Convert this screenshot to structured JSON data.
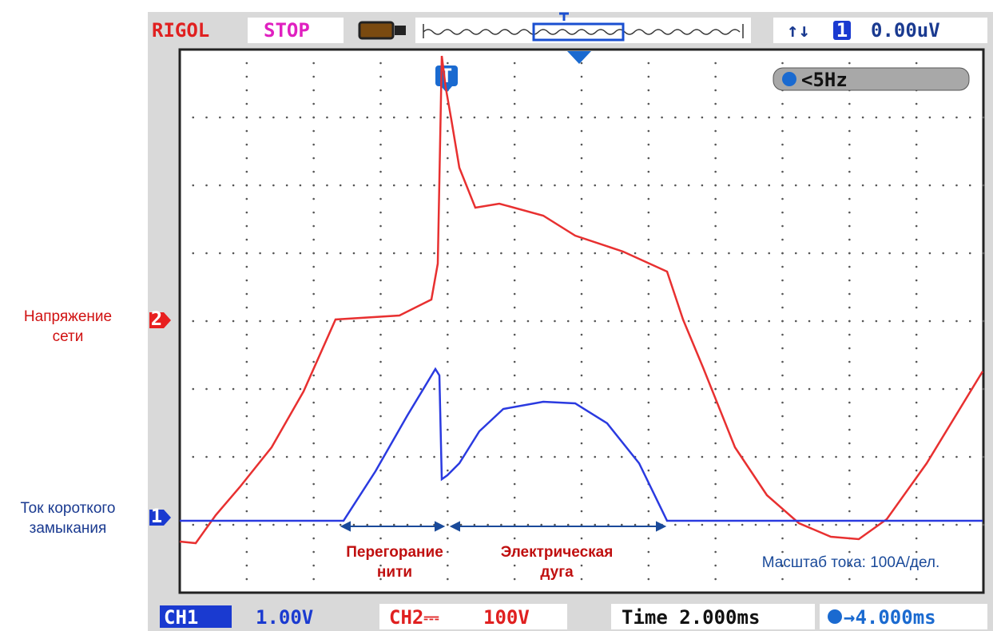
{
  "header": {
    "brand": "RIGOL",
    "status": "STOP",
    "trigger_edge": "↑↓",
    "trigger_channel": "1",
    "trigger_level": "0.00uV"
  },
  "screen": {
    "trigger_marker": "T",
    "frequency": "<5Hz",
    "ch2_marker": "2",
    "ch1_marker": "1"
  },
  "labels": {
    "voltage": [
      "Напряжение",
      "сети"
    ],
    "current": [
      "Ток короткого",
      "замыкания"
    ]
  },
  "annotations": {
    "filament": [
      "Перегорание",
      "нити"
    ],
    "arc": [
      "Электрическая",
      "дуга"
    ],
    "scale": "Масштаб тока: 100А/дел."
  },
  "footer": {
    "ch1_label": "CH1",
    "ch1_scale": "1.00V",
    "ch2_label": "CH2⎓",
    "ch2_scale": "100V",
    "timebase": "Time 2.000ms",
    "delay": "→4.000ms"
  }
}
